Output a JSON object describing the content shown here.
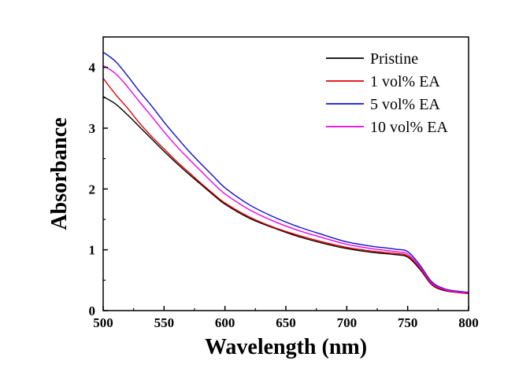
{
  "chart_data": {
    "type": "line",
    "title": "",
    "xlabel": "Wavelength (nm)",
    "ylabel": "Absorbance",
    "xlim": [
      500,
      800
    ],
    "ylim": [
      0,
      4.5
    ],
    "x_ticks": [
      500,
      550,
      600,
      650,
      700,
      750,
      800
    ],
    "y_ticks": [
      0,
      1,
      2,
      3,
      4
    ],
    "grid": false,
    "legend_position": "top-right",
    "x": [
      500,
      510,
      520,
      530,
      540,
      550,
      560,
      570,
      580,
      590,
      600,
      620,
      640,
      660,
      680,
      700,
      720,
      740,
      750,
      760,
      770,
      780,
      790,
      800
    ],
    "series": [
      {
        "name": "Pristine",
        "color": "#000000",
        "values": [
          3.52,
          3.4,
          3.22,
          3.02,
          2.82,
          2.62,
          2.43,
          2.25,
          2.08,
          1.91,
          1.75,
          1.52,
          1.36,
          1.22,
          1.11,
          1.02,
          0.96,
          0.92,
          0.88,
          0.68,
          0.42,
          0.33,
          0.3,
          0.28
        ]
      },
      {
        "name": "1 vol% EA",
        "color": "#e00000",
        "values": [
          3.82,
          3.56,
          3.33,
          3.08,
          2.86,
          2.66,
          2.46,
          2.28,
          2.1,
          1.93,
          1.77,
          1.54,
          1.37,
          1.24,
          1.13,
          1.04,
          0.98,
          0.94,
          0.9,
          0.7,
          0.43,
          0.34,
          0.3,
          0.28
        ]
      },
      {
        "name": "5 vol% EA",
        "color": "#1010d0",
        "values": [
          4.25,
          4.1,
          3.86,
          3.6,
          3.36,
          3.1,
          2.86,
          2.63,
          2.42,
          2.22,
          2.02,
          1.74,
          1.54,
          1.38,
          1.25,
          1.13,
          1.06,
          1.01,
          0.97,
          0.75,
          0.47,
          0.36,
          0.32,
          0.3
        ]
      },
      {
        "name": "10 vol% EA",
        "color": "#ee00ee",
        "values": [
          4.03,
          3.9,
          3.68,
          3.43,
          3.19,
          2.94,
          2.71,
          2.5,
          2.3,
          2.1,
          1.92,
          1.66,
          1.47,
          1.32,
          1.2,
          1.09,
          1.02,
          0.97,
          0.93,
          0.72,
          0.45,
          0.35,
          0.31,
          0.29
        ]
      }
    ]
  }
}
